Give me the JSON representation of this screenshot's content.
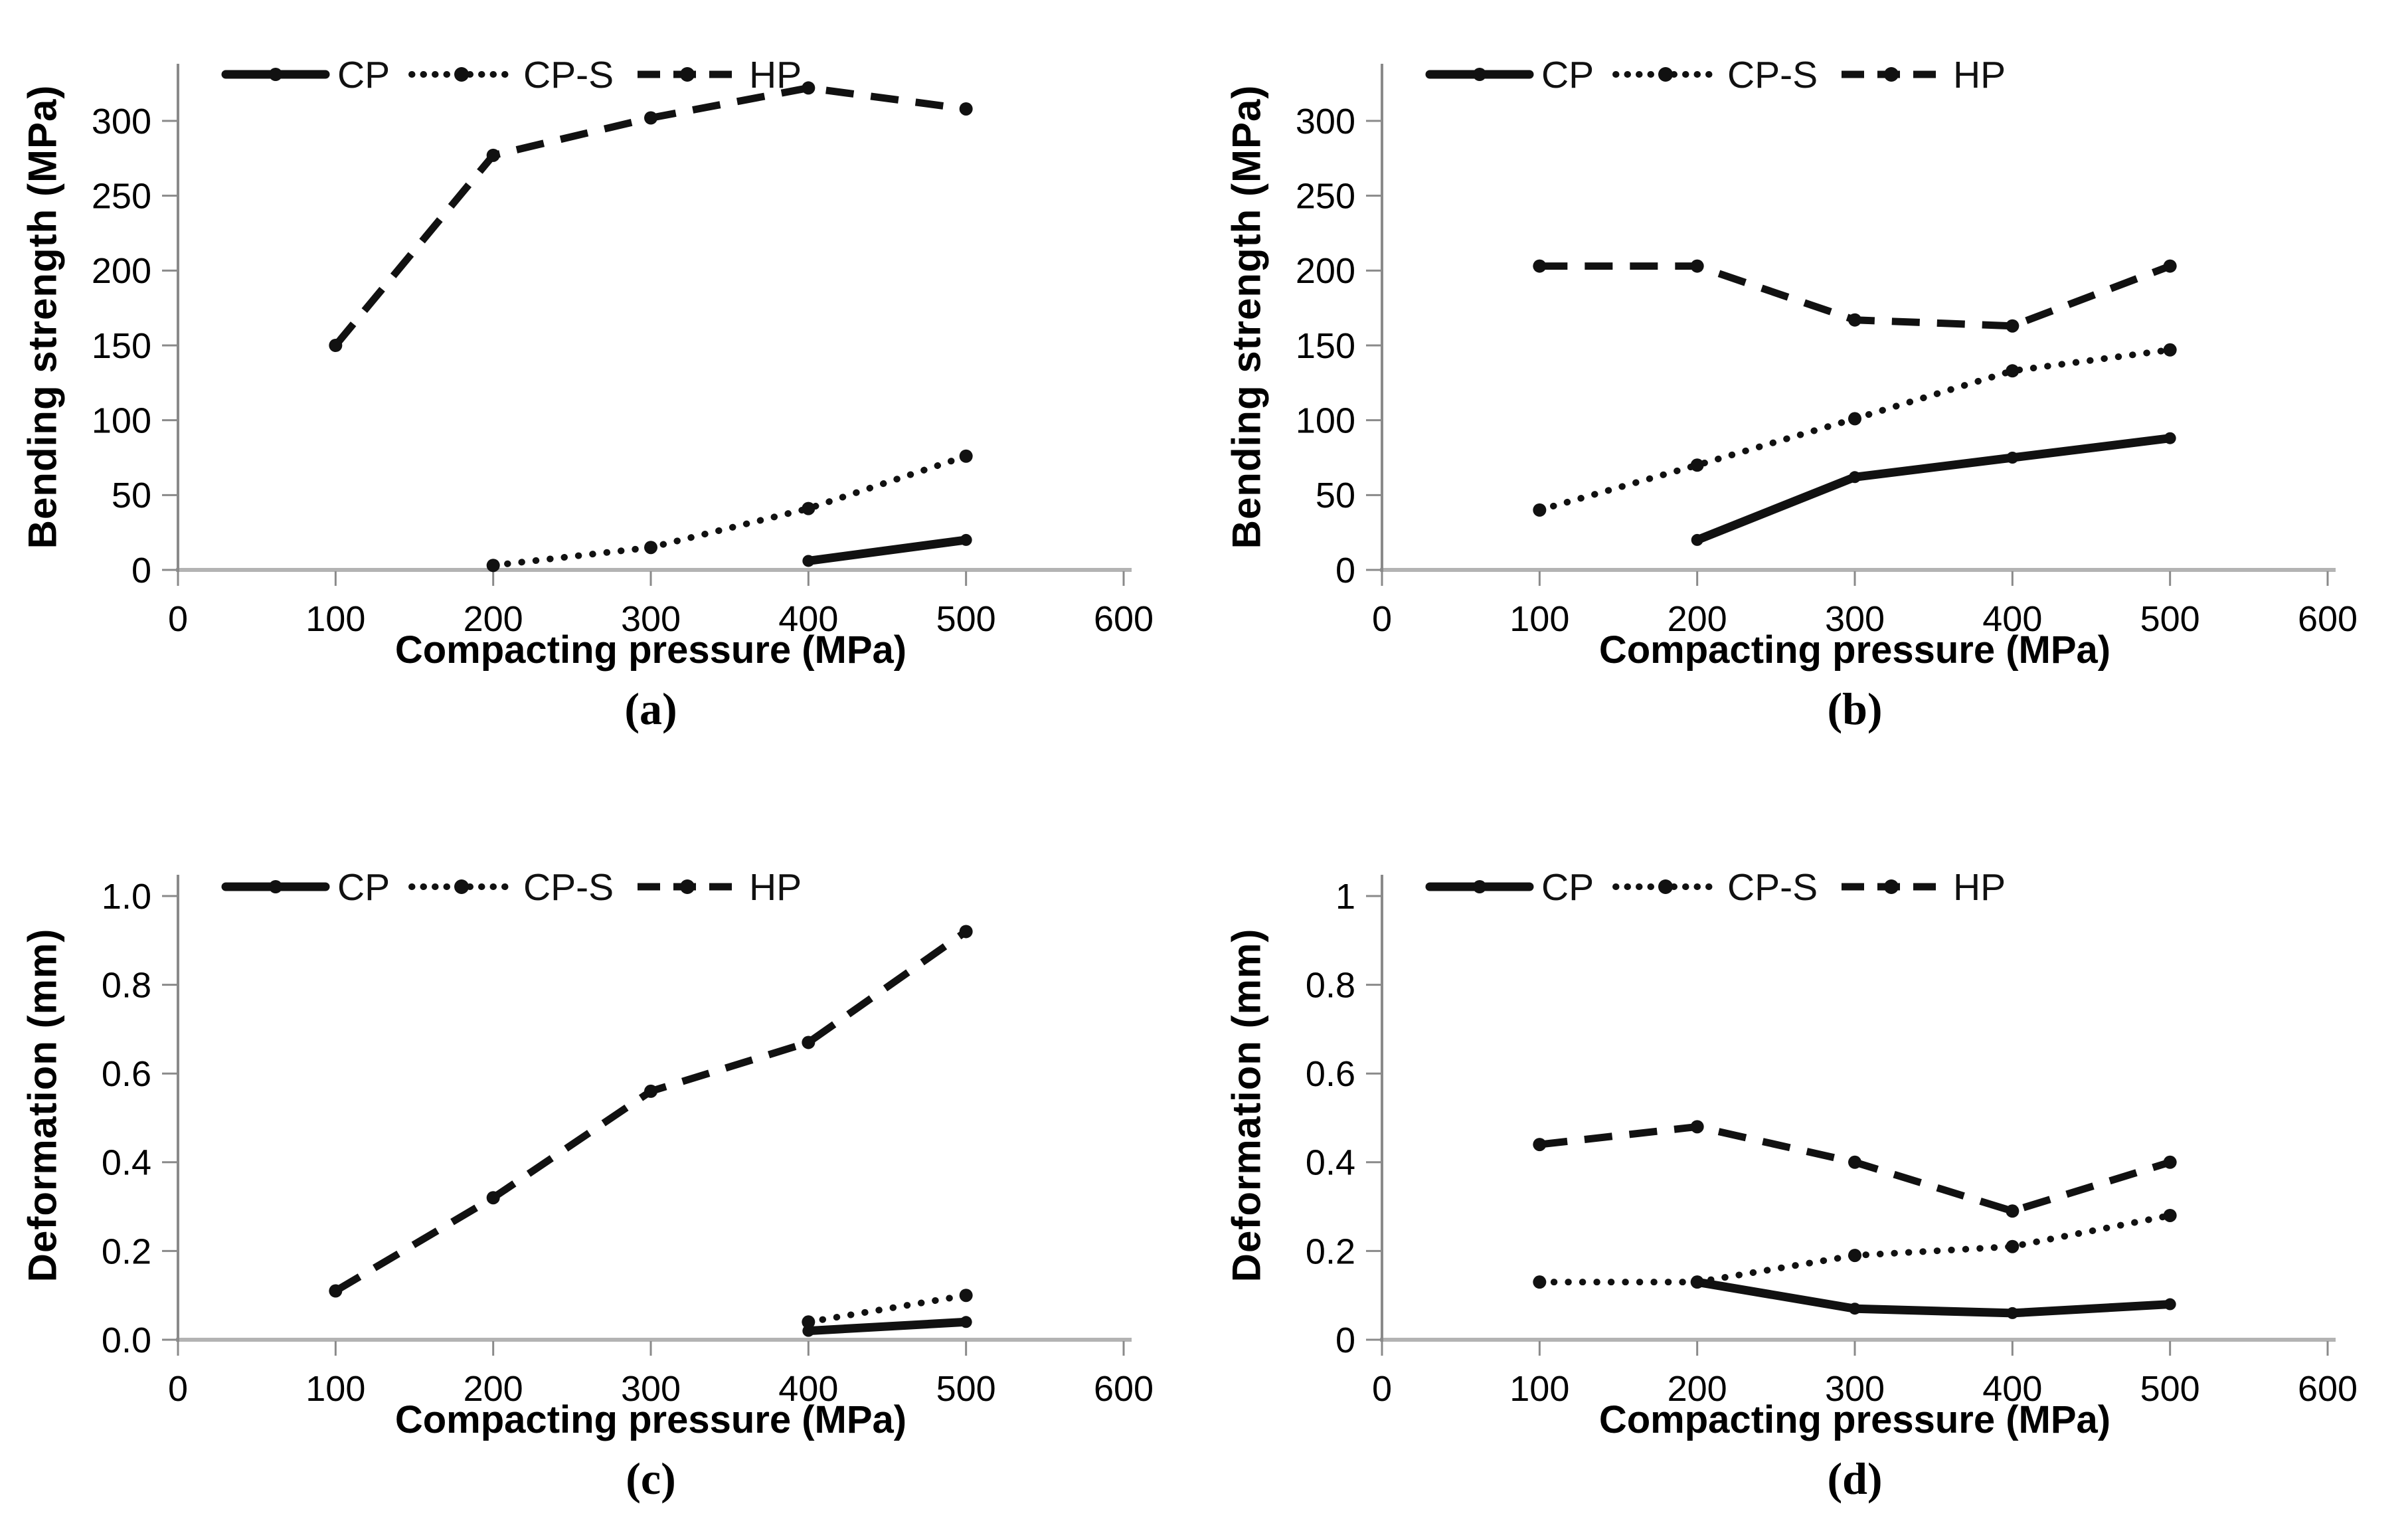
{
  "figure_title": "",
  "legend_labels": [
    "CP",
    "CP-S",
    "HP"
  ],
  "colors": {
    "series": "#111111",
    "x_axis_line": "#b3b3b3",
    "y_axis_line": "#8a8a8a",
    "tick_mark": "#8a8a8a",
    "text": "#000000",
    "background": "#ffffff"
  },
  "chart_data": [
    {
      "type": "line",
      "panel": "a",
      "panel_label": "(a)",
      "xlabel": "Compacting pressure (MPa)",
      "ylabel": "Bending strength (MPa)",
      "xlim": [
        0,
        600
      ],
      "ylim": [
        0,
        335
      ],
      "x_ticks": [
        0,
        100,
        200,
        300,
        400,
        500,
        600
      ],
      "x_tick_labels": [
        "0",
        "100",
        "200",
        "300",
        "400",
        "500",
        "600"
      ],
      "y_ticks": [
        0,
        50,
        100,
        150,
        200,
        250,
        300
      ],
      "y_tick_labels": [
        "0",
        "50",
        "100",
        "150",
        "200",
        "250",
        "300"
      ],
      "grid": false,
      "legend_position": "top-inside",
      "series": [
        {
          "name": "CP",
          "style": "solid",
          "x": [
            400,
            500
          ],
          "y": [
            6,
            20
          ]
        },
        {
          "name": "CP-S",
          "style": "dotted",
          "x": [
            200,
            300,
            400,
            500
          ],
          "y": [
            3,
            15,
            41,
            76
          ]
        },
        {
          "name": "HP",
          "style": "dashed",
          "x": [
            100,
            200,
            300,
            400,
            500
          ],
          "y": [
            150,
            277,
            302,
            322,
            308
          ]
        }
      ]
    },
    {
      "type": "line",
      "panel": "b",
      "panel_label": "(b)",
      "xlabel": "Compacting pressure (MPa)",
      "ylabel": "Bending strength (MPa)",
      "xlim": [
        0,
        600
      ],
      "ylim": [
        0,
        335
      ],
      "x_ticks": [
        0,
        100,
        200,
        300,
        400,
        500,
        600
      ],
      "x_tick_labels": [
        "0",
        "100",
        "200",
        "300",
        "400",
        "500",
        "600"
      ],
      "y_ticks": [
        0,
        50,
        100,
        150,
        200,
        250,
        300
      ],
      "y_tick_labels": [
        "0",
        "50",
        "100",
        "150",
        "200",
        "250",
        "300"
      ],
      "grid": false,
      "legend_position": "top-inside",
      "series": [
        {
          "name": "CP",
          "style": "solid",
          "x": [
            200,
            300,
            400,
            500
          ],
          "y": [
            20,
            62,
            75,
            88
          ]
        },
        {
          "name": "CP-S",
          "style": "dotted",
          "x": [
            100,
            200,
            300,
            400,
            500
          ],
          "y": [
            40,
            70,
            101,
            133,
            147
          ]
        },
        {
          "name": "HP",
          "style": "dashed",
          "x": [
            100,
            200,
            300,
            400,
            500
          ],
          "y": [
            203,
            203,
            167,
            163,
            203
          ]
        }
      ]
    },
    {
      "type": "line",
      "panel": "c",
      "panel_label": "(c)",
      "xlabel": "Compacting pressure (MPa)",
      "ylabel": "Deformation (mm)",
      "xlim": [
        0,
        600
      ],
      "ylim": [
        0,
        1.04
      ],
      "x_ticks": [
        0,
        100,
        200,
        300,
        400,
        500,
        600
      ],
      "x_tick_labels": [
        "0",
        "100",
        "200",
        "300",
        "400",
        "500",
        "600"
      ],
      "y_ticks": [
        0,
        0.2,
        0.4,
        0.6,
        0.8,
        1.0
      ],
      "y_tick_labels": [
        "0.0",
        "0.2",
        "0.4",
        "0.6",
        "0.8",
        "1.0"
      ],
      "grid": false,
      "legend_position": "top-inside",
      "series": [
        {
          "name": "CP",
          "style": "solid",
          "x": [
            400,
            500
          ],
          "y": [
            0.02,
            0.04
          ]
        },
        {
          "name": "CP-S",
          "style": "dotted",
          "x": [
            400,
            500
          ],
          "y": [
            0.04,
            0.1
          ]
        },
        {
          "name": "HP",
          "style": "dashed",
          "x": [
            100,
            200,
            300,
            400,
            500
          ],
          "y": [
            0.11,
            0.32,
            0.56,
            0.67,
            0.92
          ]
        }
      ]
    },
    {
      "type": "line",
      "panel": "d",
      "panel_label": "(d)",
      "xlabel": "Compacting pressure (MPa)",
      "ylabel": "Deformation (mm)",
      "xlim": [
        0,
        600
      ],
      "ylim": [
        0,
        1.04
      ],
      "x_ticks": [
        0,
        100,
        200,
        300,
        400,
        500,
        600
      ],
      "x_tick_labels": [
        "0",
        "100",
        "200",
        "300",
        "400",
        "500",
        "600"
      ],
      "y_ticks": [
        0,
        0.2,
        0.4,
        0.6,
        0.8,
        1.0
      ],
      "y_tick_labels": [
        "0",
        "0.2",
        "0.4",
        "0.6",
        "0.8",
        "1"
      ],
      "grid": false,
      "legend_position": "top-inside",
      "series": [
        {
          "name": "CP",
          "style": "solid",
          "x": [
            200,
            300,
            400,
            500
          ],
          "y": [
            0.13,
            0.07,
            0.06,
            0.08
          ]
        },
        {
          "name": "CP-S",
          "style": "dotted",
          "x": [
            100,
            200,
            300,
            400,
            500
          ],
          "y": [
            0.13,
            0.13,
            0.19,
            0.21,
            0.28
          ]
        },
        {
          "name": "HP",
          "style": "dashed",
          "x": [
            100,
            200,
            300,
            400,
            500
          ],
          "y": [
            0.44,
            0.48,
            0.4,
            0.29,
            0.4
          ]
        }
      ]
    }
  ]
}
